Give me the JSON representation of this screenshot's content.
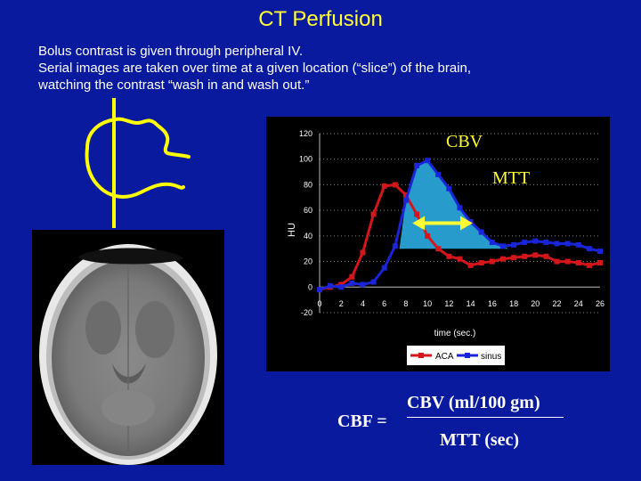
{
  "slide": {
    "title": "CT Perfusion",
    "intro_lines": [
      "Bolus contrast is given through peripheral IV.",
      "Serial images are taken over time at a given location (“slice”) of the brain,",
      "watching the contrast “wash in and wash out.”"
    ]
  },
  "formula": {
    "lhs": "CBF =",
    "numerator": "CBV (ml/100 gm)",
    "denominator": "MTT (sec)"
  },
  "colors": {
    "background": "#0a1a9e",
    "title": "#ffff33",
    "aca_series": "#d4161b",
    "sinus_series": "#1a24d8",
    "shaded_area": "#29a3d6",
    "arrow": "#ffff33"
  },
  "chart_data": {
    "type": "line",
    "xlabel": "time (sec.)",
    "ylabel": "HU",
    "xlim": [
      0,
      26
    ],
    "ylim": [
      -20,
      120
    ],
    "x_ticks": [
      0,
      2,
      4,
      6,
      8,
      10,
      12,
      14,
      16,
      18,
      20,
      22,
      24,
      26
    ],
    "y_ticks": [
      -20,
      0,
      20,
      40,
      60,
      80,
      100,
      120
    ],
    "grid": "horizontal dotted",
    "legend": "bottom",
    "annotations": [
      "CBV",
      "MTT"
    ],
    "series": [
      {
        "name": "ACA",
        "color": "#d4161b",
        "x": [
          0,
          1,
          2,
          3,
          4,
          5,
          6,
          7,
          8,
          9,
          10,
          11,
          12,
          13,
          14,
          15,
          16,
          17,
          18,
          19,
          20,
          21,
          22,
          23,
          24,
          25,
          26
        ],
        "values": [
          -2,
          0,
          2,
          8,
          27,
          57,
          79,
          80,
          72,
          57,
          40,
          30,
          24,
          22,
          17,
          19,
          20,
          22,
          23,
          24,
          25,
          24,
          20,
          20,
          19,
          17,
          19
        ]
      },
      {
        "name": "sinus",
        "color": "#1a24d8",
        "x": [
          0,
          1,
          2,
          3,
          4,
          5,
          6,
          7,
          8,
          9,
          10,
          11,
          12,
          13,
          14,
          15,
          16,
          17,
          18,
          19,
          20,
          21,
          22,
          23,
          24,
          25,
          26
        ],
        "values": [
          -2,
          1,
          0,
          3,
          2,
          4,
          15,
          32,
          68,
          95,
          99,
          88,
          77,
          62,
          51,
          43,
          35,
          32,
          33,
          35,
          36,
          35,
          34,
          34,
          33,
          30,
          28
        ]
      }
    ]
  }
}
